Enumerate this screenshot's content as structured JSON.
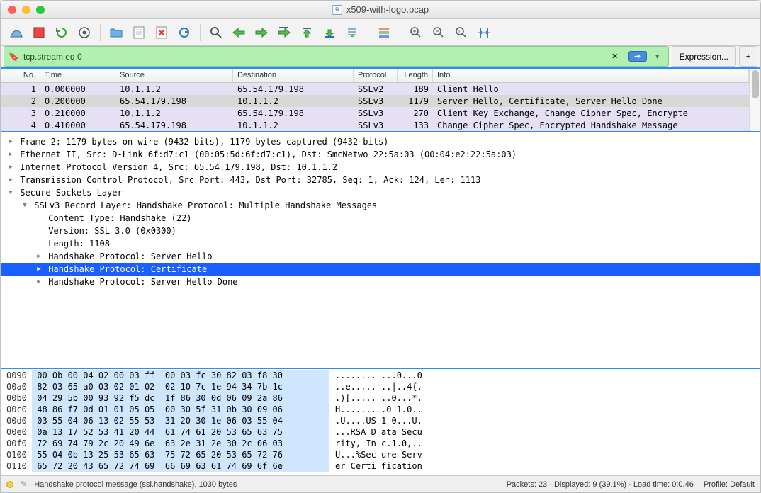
{
  "window": {
    "title": "x509-with-logo.pcap"
  },
  "traffic": {
    "close": "#ff5f57",
    "min": "#febc2e",
    "max": "#28c840"
  },
  "filter": {
    "value": "tcp.stream eq 0",
    "expression_label": "Expression...",
    "clear_glyph": "✕",
    "apply_glyph": "➔"
  },
  "packet_list": {
    "headers": {
      "no": "No.",
      "time": "Time",
      "source": "Source",
      "destination": "Destination",
      "protocol": "Protocol",
      "length": "Length",
      "info": "Info"
    },
    "colors": {
      "ssl_bg": "#e6e0f4",
      "ssl_fg": "#222",
      "sel_bg": "#d8d8d8"
    },
    "rows": [
      {
        "no": "1",
        "time": "0.000000",
        "src": "10.1.1.2",
        "dst": "65.54.179.198",
        "proto": "SSLv2",
        "len": "189",
        "info": "Client Hello",
        "bg": "#e6e0f4",
        "selected": false
      },
      {
        "no": "2",
        "time": "0.200000",
        "src": "65.54.179.198",
        "dst": "10.1.1.2",
        "proto": "SSLv3",
        "len": "1179",
        "info": "Server Hello, Certificate, Server Hello Done",
        "bg": "#d8d8d8",
        "selected": true
      },
      {
        "no": "3",
        "time": "0.210000",
        "src": "10.1.1.2",
        "dst": "65.54.179.198",
        "proto": "SSLv3",
        "len": "270",
        "info": "Client Key Exchange, Change Cipher Spec, Encrypte",
        "bg": "#e6e0f4",
        "selected": false
      },
      {
        "no": "4",
        "time": "0.410000",
        "src": "65.54.179.198",
        "dst": "10.1.1.2",
        "proto": "SSLv3",
        "len": "133",
        "info": "Change Cipher Spec, Encrypted Handshake Message",
        "bg": "#e6e0f4",
        "selected": false
      }
    ]
  },
  "details": [
    {
      "indent": 0,
      "expand": "closed",
      "text": "Frame 2: 1179 bytes on wire (9432 bits), 1179 bytes captured (9432 bits)",
      "sel": false
    },
    {
      "indent": 0,
      "expand": "closed",
      "text": "Ethernet II, Src: D-Link_6f:d7:c1 (00:05:5d:6f:d7:c1), Dst: SmcNetwo_22:5a:03 (00:04:e2:22:5a:03)",
      "sel": false
    },
    {
      "indent": 0,
      "expand": "closed",
      "text": "Internet Protocol Version 4, Src: 65.54.179.198, Dst: 10.1.1.2",
      "sel": false
    },
    {
      "indent": 0,
      "expand": "closed",
      "text": "Transmission Control Protocol, Src Port: 443, Dst Port: 32785, Seq: 1, Ack: 124, Len: 1113",
      "sel": false
    },
    {
      "indent": 0,
      "expand": "open",
      "text": "Secure Sockets Layer",
      "sel": false
    },
    {
      "indent": 1,
      "expand": "open",
      "text": "SSLv3 Record Layer: Handshake Protocol: Multiple Handshake Messages",
      "sel": false
    },
    {
      "indent": 2,
      "expand": "none",
      "text": "Content Type: Handshake (22)",
      "sel": false
    },
    {
      "indent": 2,
      "expand": "none",
      "text": "Version: SSL 3.0 (0x0300)",
      "sel": false
    },
    {
      "indent": 2,
      "expand": "none",
      "text": "Length: 1108",
      "sel": false
    },
    {
      "indent": 2,
      "expand": "closed",
      "text": "Handshake Protocol: Server Hello",
      "sel": false
    },
    {
      "indent": 2,
      "expand": "closed",
      "text": "Handshake Protocol: Certificate",
      "sel": true
    },
    {
      "indent": 2,
      "expand": "closed",
      "text": "Handshake Protocol: Server Hello Done",
      "sel": false
    }
  ],
  "hex": [
    {
      "off": "0090",
      "b": "00 0b 00 04 02 00 03 ff  00 03 fc 30 82 03 f8 30",
      "a": "........ ...0...0"
    },
    {
      "off": "00a0",
      "b": "82 03 65 a0 03 02 01 02  02 10 7c 1e 94 34 7b 1c",
      "a": "..e..... ..|..4{."
    },
    {
      "off": "00b0",
      "b": "04 29 5b 00 93 92 f5 dc  1f 86 30 0d 06 09 2a 86",
      "a": ".)[..... ..0...*."
    },
    {
      "off": "00c0",
      "b": "48 86 f7 0d 01 01 05 05  00 30 5f 31 0b 30 09 06",
      "a": "H....... .0_1.0.."
    },
    {
      "off": "00d0",
      "b": "03 55 04 06 13 02 55 53  31 20 30 1e 06 03 55 04",
      "a": ".U....US 1 0...U."
    },
    {
      "off": "00e0",
      "b": "0a 13 17 52 53 41 20 44  61 74 61 20 53 65 63 75",
      "a": "...RSA D ata Secu"
    },
    {
      "off": "00f0",
      "b": "72 69 74 79 2c 20 49 6e  63 2e 31 2e 30 2c 06 03",
      "a": "rity, In c.1.0,.."
    },
    {
      "off": "0100",
      "b": "55 04 0b 13 25 53 65 63  75 72 65 20 53 65 72 76",
      "a": "U...%Sec ure Serv"
    },
    {
      "off": "0110",
      "b": "65 72 20 43 65 72 74 69  66 69 63 61 74 69 6f 6e",
      "a": "er Certi fication"
    }
  ],
  "statusbar": {
    "msg": "Handshake protocol message (ssl.handshake), 1030 bytes",
    "packets": "Packets: 23 · Displayed: 9 (39.1%) · Load time: 0:0.46",
    "profile": "Profile: Default"
  }
}
